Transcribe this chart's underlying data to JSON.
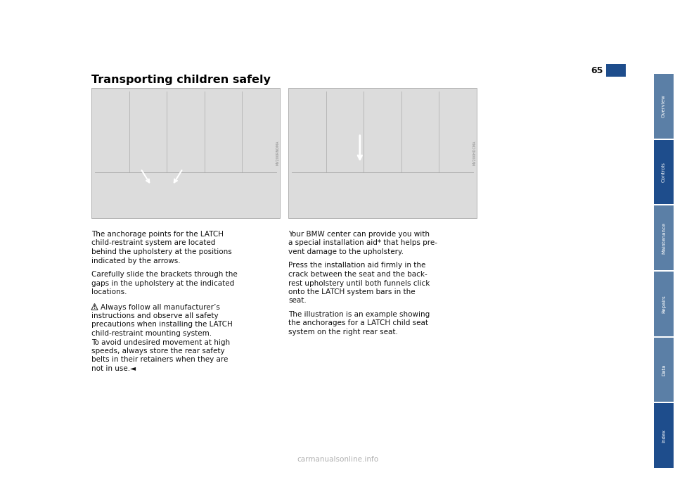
{
  "bg_color": "#ffffff",
  "title": "Transporting children safely",
  "page_number": "65",
  "sidebar_labels": [
    "Overview",
    "Controls",
    "Maintenance",
    "Repairs",
    "Data",
    "Index"
  ],
  "sidebar_colors": [
    "#5b7fa6",
    "#1e4d8c",
    "#5b7fa6",
    "#5b7fa6",
    "#5b7fa6",
    "#1e4d8c"
  ],
  "watermark": "carmanualsonline.info",
  "title_fontsize": 11.5,
  "body_fontsize": 7.5,
  "left_paragraphs": [
    "The anchorage points for the LATCH\nchild-restraint system are located\nbehind the upholstery at the positions\nindicated by the arrows.",
    "Carefully slide the brackets through the\ngaps in the upholstery at the indicated\nlocations."
  ],
  "warning_indent_line": "Always follow all manufacturer’s",
  "warning_lines": [
    "instructions and observe all safety",
    "precautions when installing the LATCH",
    "child-restraint mounting system.",
    "To avoid undesired movement at high",
    "speeds, always store the rear safety",
    "belts in their retainers when they are",
    "not in use.◄"
  ],
  "right_paragraphs": [
    "Your BMW center can provide you with\na special installation aid* that helps pre-\nvent damage to the upholstery.",
    "Press the installation aid firmly in the\ncrack between the seat and the back-\nrest upholstery until both funnels click\nonto the LATCH system bars in the\nseat.",
    "The illustration is an example showing\nthe anchorages for a LATCH child seat\nsystem on the right rear seat."
  ],
  "img_code_left": "MV200RNDMA",
  "img_code_right": "MV200HDCMA"
}
